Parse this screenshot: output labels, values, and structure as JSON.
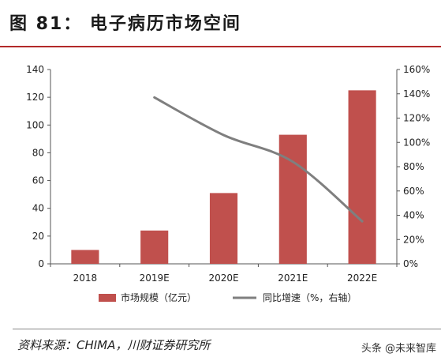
{
  "header": {
    "title": "图 81： 电子病历市场空间"
  },
  "footer": {
    "source": "资料来源：CHIMA，川财证券研究所",
    "watermark": "头条 @未来智库"
  },
  "chart_data": {
    "type": "bar",
    "categories": [
      "2018",
      "2019E",
      "2020E",
      "2021E",
      "2022E"
    ],
    "series": [
      {
        "name": "市场规模（亿元）",
        "type": "bar",
        "axis": "left",
        "values": [
          10,
          24,
          51,
          93,
          125
        ],
        "color": "#c0504d"
      },
      {
        "name": "同比增速（%，右轴）",
        "type": "line",
        "axis": "right",
        "values": [
          null,
          137,
          106,
          84,
          35
        ],
        "color": "#7f7f7f"
      }
    ],
    "ylim_left": [
      0,
      140
    ],
    "yticks_left": [
      0,
      20,
      40,
      60,
      80,
      100,
      120,
      140
    ],
    "ylim_right": [
      0,
      160
    ],
    "yticks_right": [
      "0%",
      "20%",
      "40%",
      "60%",
      "80%",
      "100%",
      "120%",
      "140%",
      "160%"
    ],
    "legend_position": "bottom-center",
    "grid": false
  }
}
